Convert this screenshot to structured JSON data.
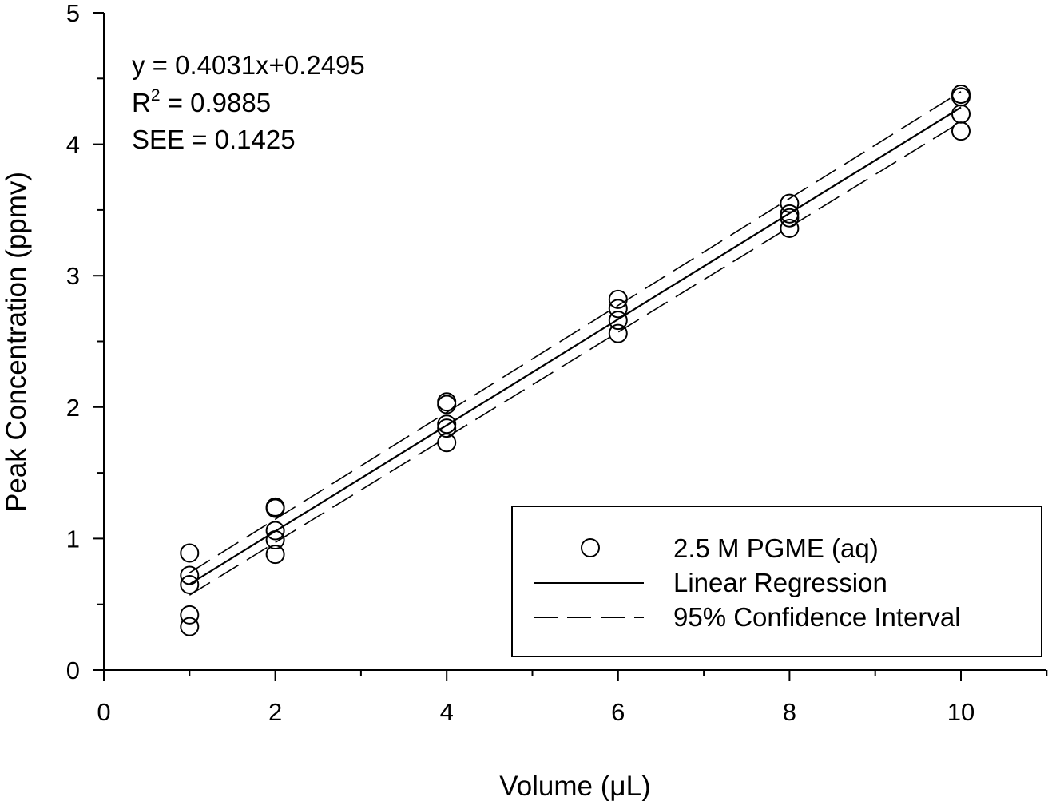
{
  "chart_data": {
    "type": "scatter",
    "xlabel": "Volume (μL)",
    "ylabel": "Peak Concentration (ppmv)",
    "xlim": [
      0,
      11
    ],
    "ylim": [
      0,
      5
    ],
    "x_ticks": [
      0,
      2,
      4,
      6,
      8,
      10
    ],
    "y_ticks": [
      0,
      1,
      2,
      3,
      4,
      5
    ],
    "grid": false,
    "legend_position": "bottom-right",
    "annotations": {
      "equation": "y = 0.4031x+0.2495",
      "r2_prefix": "R",
      "r2_sup": "2",
      "r2_value": " = 0.9885",
      "see": "SEE = 0.1425"
    },
    "series": [
      {
        "name": "2.5 M PGME (aq)",
        "type": "scatter",
        "marker": "open-circle",
        "points": [
          [
            1,
            0.89
          ],
          [
            1,
            0.72
          ],
          [
            1,
            0.65
          ],
          [
            1,
            0.42
          ],
          [
            1,
            0.33
          ],
          [
            2,
            1.24
          ],
          [
            2,
            1.23
          ],
          [
            2,
            1.06
          ],
          [
            2,
            0.99
          ],
          [
            2,
            0.88
          ],
          [
            4,
            2.04
          ],
          [
            4,
            2.02
          ],
          [
            4,
            1.87
          ],
          [
            4,
            1.84
          ],
          [
            4,
            1.73
          ],
          [
            6,
            2.82
          ],
          [
            6,
            2.75
          ],
          [
            6,
            2.66
          ],
          [
            6,
            2.56
          ],
          [
            8,
            3.55
          ],
          [
            8,
            3.47
          ],
          [
            8,
            3.44
          ],
          [
            8,
            3.36
          ],
          [
            10,
            4.38
          ],
          [
            10,
            4.36
          ],
          [
            10,
            4.23
          ],
          [
            10,
            4.1
          ]
        ]
      },
      {
        "name": "Linear Regression",
        "type": "line",
        "style": "solid",
        "slope": 0.4031,
        "intercept": 0.2495,
        "x_range": [
          1,
          10
        ]
      },
      {
        "name": "95% Confidence Interval",
        "type": "line",
        "style": "dashed",
        "upper": [
          [
            1,
            0.74
          ],
          [
            10,
            4.4
          ]
        ],
        "lower": [
          [
            1,
            0.57
          ],
          [
            10,
            4.17
          ]
        ]
      }
    ]
  }
}
